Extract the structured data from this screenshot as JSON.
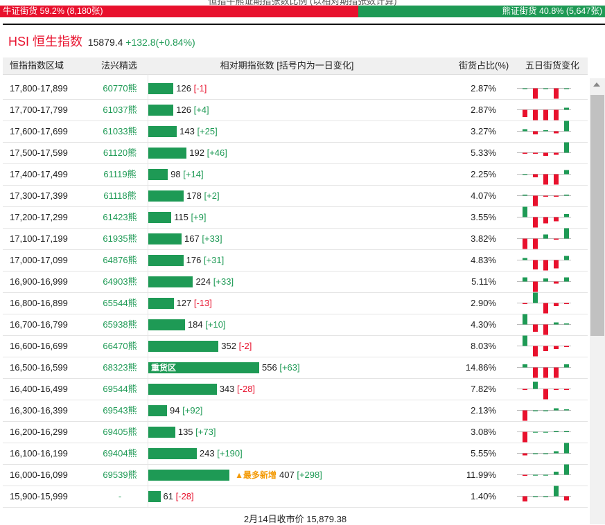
{
  "caption": "恒指牛熊证期指张数比例 (以相对期指张数计算)",
  "ratio": {
    "bull": {
      "label": "牛证街货",
      "value": 59.2,
      "text": "59.2% (8,180张)"
    },
    "bear": {
      "label": "熊证街货",
      "value": 40.8,
      "text": "40.8% (5,647张)"
    }
  },
  "header": {
    "name": "HSI 恒生指数",
    "price": "15879.4",
    "change": "+132.8(+0.84%)"
  },
  "table": {
    "columns": [
      "恒指指数区域",
      "法兴精选",
      "相对期指张数 [括号内为一日变化]",
      "街货占比(%)",
      "五日街货变化"
    ],
    "rows": [
      {
        "range": "17,800-17,899",
        "code": "60770熊",
        "value": 126,
        "change": "[-1]",
        "share": "2.87%",
        "five_day": [
          0,
          -1,
          0,
          -1,
          0
        ]
      },
      {
        "range": "17,700-17,799",
        "code": "61037熊",
        "value": 126,
        "change": "[+4]",
        "share": "2.87%",
        "five_day": [
          -0.7,
          -1,
          -1,
          -1,
          0.2
        ]
      },
      {
        "range": "17,600-17,699",
        "code": "61033熊",
        "value": 143,
        "change": "[+25]",
        "share": "3.27%",
        "five_day": [
          0.2,
          -0.3,
          0.1,
          -0.2,
          1
        ]
      },
      {
        "range": "17,500-17,599",
        "code": "61120熊",
        "value": 192,
        "change": "[+46]",
        "share": "5.33%",
        "five_day": [
          -0.1,
          -0.1,
          -0.3,
          -0.2,
          1
        ]
      },
      {
        "range": "17,400-17,499",
        "code": "61119熊",
        "value": 98,
        "change": "[+14]",
        "share": "2.25%",
        "five_day": [
          0,
          -0.3,
          -1,
          -1,
          0.4
        ]
      },
      {
        "range": "17,300-17,399",
        "code": "61118熊",
        "value": 178,
        "change": "[+2]",
        "share": "4.07%",
        "five_day": [
          0.1,
          -1,
          -0.1,
          -0.1,
          0.1
        ]
      },
      {
        "range": "17,200-17,299",
        "code": "61423熊",
        "value": 115,
        "change": "[+9]",
        "share": "3.55%",
        "five_day": [
          1,
          -1,
          -0.6,
          -0.4,
          0.3
        ]
      },
      {
        "range": "17,100-17,199",
        "code": "61935熊",
        "value": 167,
        "change": "[+33]",
        "share": "3.82%",
        "five_day": [
          -1,
          -1,
          0.4,
          -0.1,
          1
        ]
      },
      {
        "range": "17,000-17,099",
        "code": "64876熊",
        "value": 176,
        "change": "[+31]",
        "share": "4.83%",
        "five_day": [
          0.2,
          -0.9,
          -1,
          -0.8,
          0.4
        ]
      },
      {
        "range": "16,900-16,999",
        "code": "64903熊",
        "value": 224,
        "change": "[+33]",
        "share": "5.11%",
        "five_day": [
          0.4,
          -1,
          0.3,
          -0.2,
          0.4
        ]
      },
      {
        "range": "16,800-16,899",
        "code": "65544熊",
        "value": 127,
        "change": "[-13]",
        "share": "2.90%",
        "five_day": [
          -0.1,
          1,
          -1,
          -0.3,
          -0.1
        ]
      },
      {
        "range": "16,700-16,799",
        "code": "65938熊",
        "value": 184,
        "change": "[+10]",
        "share": "4.30%",
        "five_day": [
          1,
          -0.7,
          -1,
          0.2,
          0.1
        ]
      },
      {
        "range": "16,600-16,699",
        "code": "66470熊",
        "value": 352,
        "change": "[-2]",
        "share": "8.03%",
        "five_day": [
          1,
          -1,
          -0.5,
          -0.3,
          -0.1
        ]
      },
      {
        "range": "16,500-16,599",
        "code": "68323熊",
        "value": 556,
        "change": "[+63]",
        "share": "14.86%",
        "tag": "重货区",
        "five_day": [
          0.3,
          -1,
          -1,
          -1,
          0.3
        ]
      },
      {
        "range": "16,400-16,499",
        "code": "69544熊",
        "value": 343,
        "change": "[-28]",
        "share": "7.82%",
        "five_day": [
          -0.1,
          0.7,
          -1,
          -0.1,
          -0.1
        ]
      },
      {
        "range": "16,300-16,399",
        "code": "69543熊",
        "value": 94,
        "change": "[+92]",
        "share": "2.13%",
        "five_day": [
          -1,
          0,
          0,
          0.2,
          0.1
        ]
      },
      {
        "range": "16,200-16,299",
        "code": "69405熊",
        "value": 135,
        "change": "[+73]",
        "share": "3.08%",
        "five_day": [
          -1,
          0,
          0,
          0.1,
          0.1
        ]
      },
      {
        "range": "16,100-16,199",
        "code": "69404熊",
        "value": 243,
        "change": "[+190]",
        "share": "5.55%",
        "five_day": [
          -0.2,
          0,
          0,
          0.2,
          1
        ]
      },
      {
        "range": "16,000-16,099",
        "code": "69539熊",
        "value": 407,
        "change": "[+298]",
        "share": "11.99%",
        "tag_outside": "▲最多新增",
        "five_day": [
          -0.1,
          0,
          0,
          0.3,
          1
        ]
      },
      {
        "range": "15,900-15,999",
        "code": "-",
        "value": 61,
        "change": "[-28]",
        "share": "1.40%",
        "five_day": [
          -0.5,
          0,
          0,
          1,
          -0.4
        ]
      }
    ]
  },
  "footer": "2月14日收市价 15,879.38"
}
